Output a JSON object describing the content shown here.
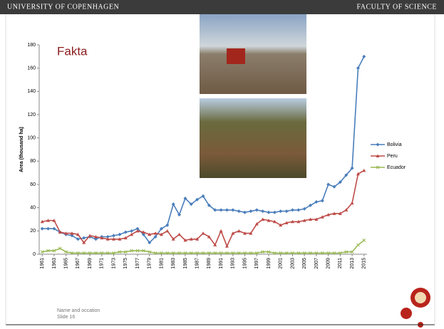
{
  "header": {
    "left": "UNIVERSITY OF COPENHAGEN",
    "right": "FACULTY OF SCIENCE"
  },
  "footer": {
    "name": "Name and occation",
    "slide": "Slide 16"
  },
  "chart_data": {
    "type": "line",
    "title": "Fakta",
    "y_label": "Area (thousand ha)",
    "x": [
      1961,
      1962,
      1963,
      1964,
      1965,
      1966,
      1967,
      1968,
      1969,
      1970,
      1971,
      1972,
      1973,
      1974,
      1975,
      1976,
      1977,
      1978,
      1979,
      1980,
      1981,
      1982,
      1983,
      1984,
      1985,
      1986,
      1987,
      1988,
      1989,
      1990,
      1991,
      1992,
      1993,
      1994,
      1995,
      1996,
      1997,
      1998,
      1999,
      2000,
      2001,
      2002,
      2003,
      2004,
      2005,
      2006,
      2007,
      2008,
      2009,
      2010,
      2011,
      2012,
      2013,
      2014,
      2015
    ],
    "xlim": [
      1960.5,
      2015.5
    ],
    "xticks": [
      1961,
      1963,
      1965,
      1967,
      1969,
      1971,
      1973,
      1975,
      1977,
      1979,
      1981,
      1983,
      1985,
      1987,
      1989,
      1991,
      1993,
      1995,
      1997,
      1999,
      2001,
      2003,
      2005,
      2007,
      2009,
      2011,
      2013,
      2015
    ],
    "ylim": [
      0,
      180
    ],
    "yticks": [
      0,
      20,
      40,
      60,
      80,
      100,
      120,
      140,
      160,
      180
    ],
    "legend": "right",
    "series": [
      {
        "name": "Bolivia",
        "color": "#4a7ebb",
        "marker": "diamond",
        "values": [
          22,
          22,
          22,
          19,
          17,
          16,
          13,
          14,
          15,
          13,
          15,
          15,
          16,
          17,
          19,
          20,
          22,
          17,
          10,
          15,
          22,
          25,
          43,
          34,
          48,
          43,
          47,
          50,
          42,
          38,
          38,
          38,
          38,
          37,
          36,
          37,
          38,
          37,
          36,
          36,
          37,
          37,
          38,
          38,
          39,
          42,
          45,
          46,
          60,
          58,
          62,
          68,
          74,
          160,
          170
        ]
      },
      {
        "name": "Peru",
        "color": "#be4b48",
        "marker": "triangle",
        "values": [
          28,
          29,
          29,
          19,
          18,
          18,
          17,
          10,
          16,
          15,
          14,
          13,
          13,
          13,
          14,
          17,
          20,
          19,
          17,
          18,
          17,
          20,
          13,
          17,
          12,
          13,
          13,
          18,
          15,
          8,
          20,
          7,
          18,
          20,
          18,
          18,
          26,
          30,
          29,
          28,
          25,
          27,
          28,
          28,
          29,
          30,
          30,
          32,
          34,
          35,
          35,
          38,
          44,
          69,
          72
        ]
      },
      {
        "name": "Ecuador",
        "color": "#98b954",
        "marker": "x",
        "values": [
          2,
          3,
          3,
          5,
          2,
          1,
          1,
          1,
          1,
          1,
          1,
          1,
          1,
          2,
          2,
          3,
          3,
          3,
          2,
          1,
          1,
          1,
          1,
          1,
          1,
          1,
          1,
          1,
          1,
          1,
          1,
          1,
          1,
          1,
          1,
          1,
          1,
          2,
          2,
          1,
          1,
          1,
          1,
          1,
          1,
          1,
          1,
          1,
          1,
          1,
          1,
          2,
          2,
          8,
          12
        ]
      }
    ]
  }
}
